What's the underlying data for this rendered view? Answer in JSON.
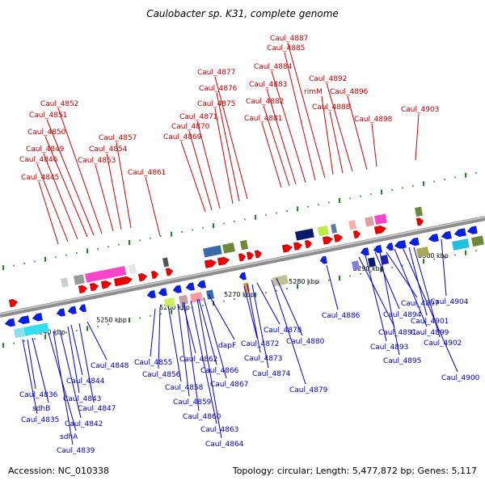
{
  "title": "Caulobacter sp. K31, complete genome",
  "accession": "Accession: NC_010338",
  "summary": "Topology: circular; Length: 5,477,872 bp; Genes: 5,117",
  "colors": {
    "forward_labels": "#cc0000",
    "reverse_labels": "#0000cc",
    "backbone": "#8c8c8c",
    "forward_gene": "#ee0000",
    "reverse_gene": "#0022ee",
    "tick_mark": "#1a8a1a"
  },
  "scale_ticks": [
    "5240 kbp",
    "5250 kbp",
    "5260 kbp",
    "5270 kbp",
    "5280 kbp",
    "5290 kbp",
    "5300 kbp"
  ],
  "forward_genes": [
    {
      "label": "Caul_4845"
    },
    {
      "label": "Caul_4846"
    },
    {
      "label": "Caul_4849"
    },
    {
      "label": "Caul_4850"
    },
    {
      "label": "Caul_4851"
    },
    {
      "label": "Caul_4852"
    },
    {
      "label": "Caul_4853"
    },
    {
      "label": "Caul_4854"
    },
    {
      "label": "Caul_4857"
    },
    {
      "label": "Caul_4861"
    },
    {
      "label": "Caul_4869"
    },
    {
      "label": "Caul_4870"
    },
    {
      "label": "Caul_4871"
    },
    {
      "label": "Caul_4875"
    },
    {
      "label": "Caul_4876"
    },
    {
      "label": "Caul_4877"
    },
    {
      "label": "Caul_4881"
    },
    {
      "label": "Caul_4882"
    },
    {
      "label": "Caul_4883"
    },
    {
      "label": "Caul_4884"
    },
    {
      "label": "Caul_4885"
    },
    {
      "label": "Caul_4887"
    },
    {
      "label": "rimM"
    },
    {
      "label": "Caul_4888"
    },
    {
      "label": "Caul_4892"
    },
    {
      "label": "Caul_4896"
    },
    {
      "label": "Caul_4898"
    },
    {
      "label": "Caul_4903"
    }
  ],
  "reverse_genes": [
    {
      "label": "Caul_4836"
    },
    {
      "label": "sdhB"
    },
    {
      "label": "Caul_4835"
    },
    {
      "label": "sdhA"
    },
    {
      "label": "Caul_4839"
    },
    {
      "label": "Caul_4842"
    },
    {
      "label": "Caul_4843"
    },
    {
      "label": "Caul_4844"
    },
    {
      "label": "Caul_4847"
    },
    {
      "label": "Caul_4848"
    },
    {
      "label": "Caul_4855"
    },
    {
      "label": "Caul_4856"
    },
    {
      "label": "Caul_4858"
    },
    {
      "label": "Caul_4859"
    },
    {
      "label": "Caul_4860"
    },
    {
      "label": "Caul_4862"
    },
    {
      "label": "Caul_4863"
    },
    {
      "label": "Caul_4864"
    },
    {
      "label": "Caul_4866"
    },
    {
      "label": "Caul_4867"
    },
    {
      "label": "dapF"
    },
    {
      "label": "Caul_4872"
    },
    {
      "label": "Caul_4873"
    },
    {
      "label": "Caul_4874"
    },
    {
      "label": "Caul_4878"
    },
    {
      "label": "Caul_4879"
    },
    {
      "label": "Caul_4880"
    },
    {
      "label": "Caul_4886"
    },
    {
      "label": "Caul_4891"
    },
    {
      "label": "Caul_4893"
    },
    {
      "label": "Caul_4894"
    },
    {
      "label": "Caul_4895"
    },
    {
      "label": "Caul_4897"
    },
    {
      "label": "Caul_4899"
    },
    {
      "label": "Caul_4900"
    },
    {
      "label": "Caul_4901"
    },
    {
      "label": "Caul_4902"
    },
    {
      "label": "Caul_4904"
    }
  ]
}
